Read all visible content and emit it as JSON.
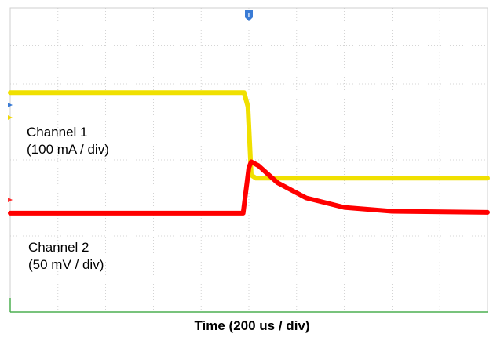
{
  "chart_data": {
    "type": "line",
    "title": "",
    "xlabel": "Time (200 us / div)",
    "ylabel": "",
    "grid": true,
    "x_divisions": 10,
    "y_divisions": 8,
    "xlim_div": [
      0,
      10
    ],
    "series": [
      {
        "name": "Channel 1 (100 mA / div)",
        "label_line1": "Channel 1",
        "label_line2": "(100 mA / div)",
        "color": "#ffff00",
        "unit_per_div": "100 mA",
        "points_div": [
          [
            0,
            5.77
          ],
          [
            4.9,
            5.77
          ],
          [
            4.98,
            5.4
          ],
          [
            5.05,
            3.6
          ],
          [
            5.15,
            3.52
          ],
          [
            10,
            3.52
          ]
        ]
      },
      {
        "name": "Channel 2 (50 mV / div)",
        "label_line1": "Channel 2",
        "label_line2": "(50 mV / div)",
        "color": "#ff0000",
        "unit_per_div": "50 mV",
        "points_div": [
          [
            0,
            2.6
          ],
          [
            4.88,
            2.6
          ],
          [
            5.0,
            3.8
          ],
          [
            5.05,
            3.95
          ],
          [
            5.2,
            3.85
          ],
          [
            5.6,
            3.4
          ],
          [
            6.2,
            3.0
          ],
          [
            7.0,
            2.75
          ],
          [
            8.0,
            2.65
          ],
          [
            10,
            2.62
          ]
        ]
      }
    ]
  }
}
